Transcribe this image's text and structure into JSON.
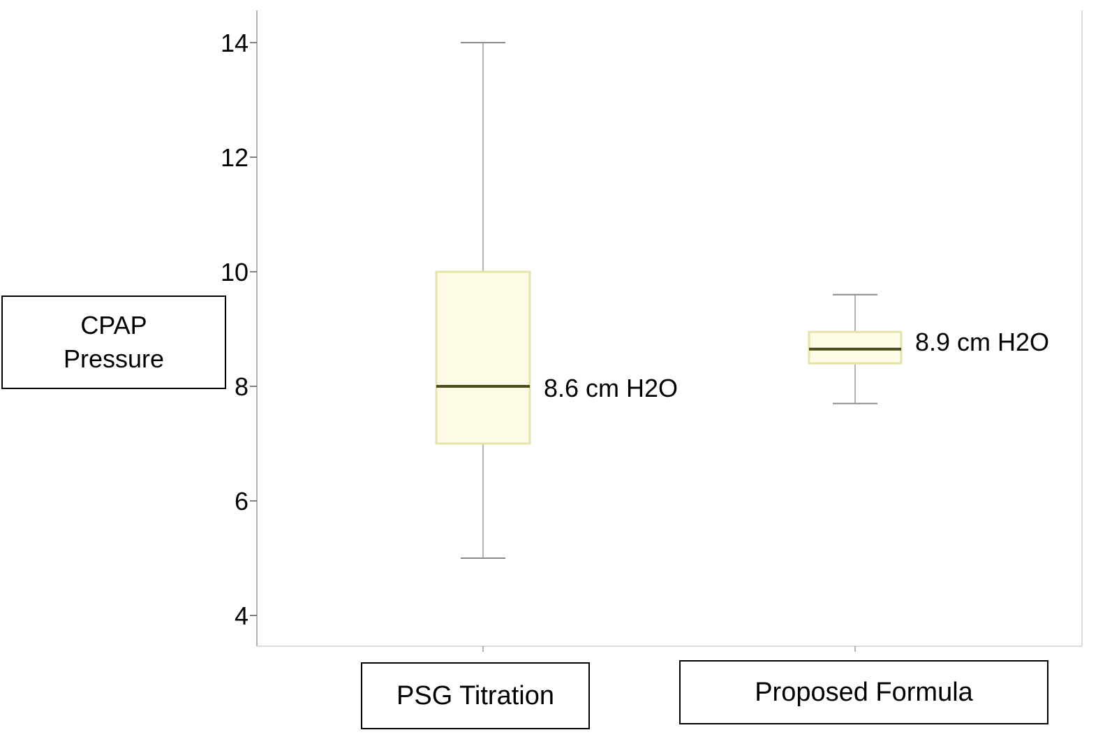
{
  "chart_data": {
    "type": "box",
    "ylabel": "CPAP\nPressure",
    "yticks": [
      4,
      6,
      8,
      10,
      12,
      14
    ],
    "ylim": [
      3.4,
      14.6
    ],
    "categories": [
      "PSG Titration",
      "Proposed Formula"
    ],
    "boxes": [
      {
        "category": "PSG Titration",
        "min": 5,
        "q1": 7,
        "median": 8,
        "q3": 10,
        "max": 14,
        "annotation": "8.6 cm H2O"
      },
      {
        "category": "Proposed Formula",
        "min": 7.7,
        "q1": 8.4,
        "median": 8.65,
        "q3": 8.95,
        "max": 9.6,
        "annotation": "8.9 cm H2O"
      }
    ],
    "colors": {
      "box_fill": "#fefce6",
      "box_edge": "#e6e2a8",
      "median": "#4b4a1c",
      "whisker": "#b5b5b5"
    }
  }
}
